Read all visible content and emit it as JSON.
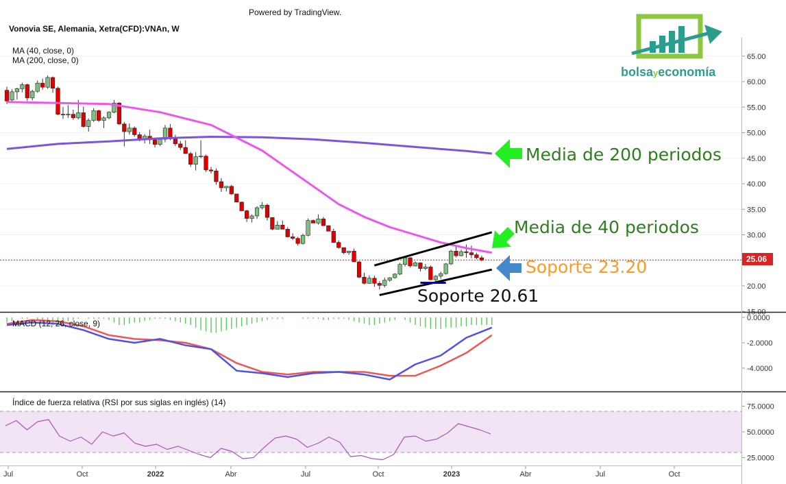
{
  "powered_by": "Powered by TradingView.",
  "title": "Vonovia SE, Alemania, Xetra(CFD):VNAn, W",
  "ma_labels": [
    "MA (40, close, 0)",
    "MA (200, close, 0)"
  ],
  "macd_label": "MACD (12, 26, close, 9)",
  "rsi_label": "Índice de fuerza relativa (RSI por sus siglas en inglés) (14)",
  "logo": {
    "part1": "bolsa",
    "part2": "y",
    "part3": "economía"
  },
  "annotations": {
    "ma200": "Media de 200 periodos",
    "ma40": "Media de 40 periodos",
    "support1": "Soporte 23.20",
    "support2": "Soporte 20.61"
  },
  "price_tag": "25.06",
  "colors": {
    "up": "#7fbf7f",
    "down": "#e00000",
    "ma40": "#ee55ee",
    "ma200": "#7b55dd",
    "macd": "#5050e8",
    "signal": "#ee5555",
    "hist": "#55cc55",
    "rsi": "#aa55bb",
    "arrow_green": "#22ee22",
    "arrow_blue": "#4488cc",
    "text_green": "#2e7d1e",
    "text_orange": "#ff9922",
    "price_tag": "#dd2222"
  },
  "chart_data": [
    {
      "type": "candlestick",
      "x": [
        "Jul",
        "Oct",
        "2022",
        "Abr",
        "Jul",
        "Oct",
        "2023",
        "Abr",
        "Jul",
        "Oct"
      ],
      "ylim": [
        15,
        67
      ],
      "yticks": [
        "65.00",
        "60.00",
        "55.00",
        "50.00",
        "45.00",
        "40.00",
        "35.00",
        "30.00",
        "25.00",
        "20.00",
        "15.00"
      ],
      "last_price": 25.06,
      "ohlc": [
        [
          58.3,
          59,
          55.6,
          56.2
        ],
        [
          56.4,
          58.5,
          56,
          58
        ],
        [
          58,
          58.8,
          56.5,
          58.6
        ],
        [
          58.6,
          59.8,
          57.9,
          59.4
        ],
        [
          59.4,
          59.6,
          56.2,
          56.8
        ],
        [
          56.8,
          58.4,
          56.3,
          58.1
        ],
        [
          58.1,
          60.2,
          57.8,
          59.7
        ],
        [
          59.7,
          60.6,
          58.4,
          58.9
        ],
        [
          58.9,
          61.2,
          58.6,
          60.8
        ],
        [
          60.8,
          61,
          57.8,
          58.7
        ],
        [
          58.7,
          59,
          53.4,
          53.6
        ],
        [
          53.6,
          55,
          52.7,
          53.5
        ],
        [
          53.5,
          55.4,
          52.9,
          53.6
        ],
        [
          53.6,
          54.5,
          52.5,
          52.9
        ],
        [
          52.9,
          56.4,
          52.6,
          53.9
        ],
        [
          53.9,
          55.1,
          51,
          51.2
        ],
        [
          51.2,
          52.8,
          50.2,
          52.4
        ],
        [
          52.4,
          54.8,
          52.1,
          54.3
        ],
        [
          54.3,
          54.5,
          52.1,
          52.4
        ],
        [
          52.4,
          53.2,
          50.9,
          52.9
        ],
        [
          52.9,
          54.2,
          52.6,
          54
        ],
        [
          54,
          56.4,
          53.8,
          55.8
        ],
        [
          55.8,
          56,
          51.5,
          51.7
        ],
        [
          51.7,
          52.1,
          47.3,
          50.2
        ],
        [
          50.2,
          51.8,
          49.6,
          50.9
        ],
        [
          50.9,
          51.2,
          49.2,
          49.6
        ],
        [
          49.6,
          50.1,
          48.3,
          48.6
        ],
        [
          48.6,
          49.7,
          47.9,
          49.3
        ],
        [
          49.3,
          50.6,
          47.8,
          48.6
        ],
        [
          48.6,
          49,
          47.1,
          47.7
        ],
        [
          47.7,
          49,
          47.4,
          48.7
        ],
        [
          48.7,
          51.5,
          48.1,
          50.9
        ],
        [
          50.9,
          51.7,
          48.5,
          48.8
        ],
        [
          48.8,
          49.6,
          47.4,
          47.8
        ],
        [
          47.8,
          48.4,
          46.6,
          47.1
        ],
        [
          47.1,
          48.5,
          46,
          45.9
        ],
        [
          45.9,
          46.2,
          43.3,
          43.8
        ],
        [
          43.8,
          46.2,
          42.6,
          45.3
        ],
        [
          45.3,
          48.5,
          45,
          45.4
        ],
        [
          45.4,
          45.7,
          42.3,
          42.7
        ],
        [
          42.7,
          43.3,
          42,
          42.5
        ],
        [
          42.5,
          43,
          39.8,
          40.4
        ],
        [
          40.4,
          41.1,
          38.4,
          39.2
        ],
        [
          39.2,
          39.4,
          38.5,
          39.5
        ],
        [
          39.5,
          39.8,
          37.8,
          38
        ],
        [
          38,
          37.5,
          36.4,
          36.4
        ],
        [
          36.4,
          36.5,
          34.7,
          34.7
        ],
        [
          34.7,
          34.9,
          32.5,
          33.2
        ],
        [
          33.2,
          34,
          32.4,
          33.7
        ],
        [
          33.7,
          35.6,
          33.1,
          35.3
        ],
        [
          35.3,
          36.4,
          35,
          35.8
        ],
        [
          35.8,
          36.1,
          32.8,
          33.4
        ],
        [
          33.4,
          33.4,
          30.9,
          31.1
        ],
        [
          31.1,
          32.7,
          31.1,
          31.9
        ],
        [
          31.9,
          32.8,
          31.2,
          31.1
        ],
        [
          31.1,
          31.5,
          29.5,
          29.6
        ],
        [
          29.6,
          30.3,
          29,
          29.3
        ],
        [
          29.3,
          29.6,
          27.9,
          28.3
        ],
        [
          28.3,
          30.2,
          28.1,
          29.9
        ],
        [
          29.9,
          33.2,
          29.7,
          32.8
        ],
        [
          32.8,
          33,
          32.3,
          32.3
        ],
        [
          32.3,
          34,
          32,
          33.1
        ],
        [
          33.1,
          33.5,
          31.7,
          31.8
        ],
        [
          31.8,
          31.5,
          30.8,
          30.7
        ],
        [
          30.7,
          31.2,
          28.4,
          28.5
        ],
        [
          28.5,
          28.9,
          27.3,
          27.5
        ],
        [
          27.5,
          27.5,
          26.2,
          26.5
        ],
        [
          26.5,
          26.9,
          26.1,
          26.8
        ],
        [
          26.8,
          27.3,
          24.8,
          24.7
        ],
        [
          24.7,
          24.9,
          21.5,
          21.7
        ],
        [
          21.7,
          22.6,
          20.3,
          20.5
        ],
        [
          20.5,
          22.1,
          20.4,
          21.5
        ],
        [
          21.5,
          22,
          19.8,
          20.5
        ],
        [
          20.5,
          20.9,
          19.3,
          20.1
        ],
        [
          20.1,
          21.6,
          19.7,
          21.1
        ],
        [
          21.1,
          21.7,
          20.8,
          21.6
        ],
        [
          21.6,
          22.5,
          21.4,
          22.3
        ],
        [
          22.3,
          24.5,
          22.1,
          24.2
        ],
        [
          24.2,
          25.8,
          23.8,
          25.5
        ],
        [
          25.5,
          25.6,
          23.6,
          23.9
        ],
        [
          23.9,
          24.8,
          23.8,
          24.5
        ],
        [
          24.5,
          24.6,
          22.8,
          23.4
        ],
        [
          23.4,
          24.3,
          23.1,
          23.7
        ],
        [
          23.7,
          24,
          21.1,
          21.2
        ],
        [
          21.2,
          22.1,
          20.9,
          21.9
        ],
        [
          21.9,
          22.8,
          21.4,
          22.4
        ],
        [
          22.4,
          24.5,
          22.2,
          24.3
        ],
        [
          24.3,
          27.1,
          24.1,
          26.8
        ],
        [
          26.8,
          27.7,
          25.6,
          25.9
        ],
        [
          25.9,
          27.1,
          25.8,
          26.7
        ],
        [
          26.7,
          28.1,
          25.5,
          26.5
        ],
        [
          26.5,
          27.9,
          25.4,
          26.1
        ],
        [
          26.1,
          26.5,
          25.2,
          25.5
        ],
        [
          25.5,
          25.9,
          24.8,
          25.06
        ]
      ],
      "ma40": [
        [
          0,
          56
        ],
        [
          10,
          55.8
        ],
        [
          20,
          55.6
        ],
        [
          30,
          54
        ],
        [
          40,
          51.5
        ],
        [
          45,
          49
        ],
        [
          50,
          46.5
        ],
        [
          55,
          43
        ],
        [
          60,
          39.5
        ],
        [
          65,
          36
        ],
        [
          70,
          33.5
        ],
        [
          75,
          31.5
        ],
        [
          80,
          30
        ],
        [
          85,
          28.5
        ],
        [
          90,
          27.4
        ],
        [
          95,
          26.5
        ]
      ],
      "ma200": [
        [
          0,
          46.8
        ],
        [
          10,
          47.8
        ],
        [
          20,
          48.3
        ],
        [
          30,
          48.9
        ],
        [
          40,
          49.2
        ],
        [
          50,
          49.1
        ],
        [
          60,
          48.7
        ],
        [
          70,
          48
        ],
        [
          80,
          47.2
        ],
        [
          90,
          46.4
        ],
        [
          95,
          45.9
        ]
      ],
      "trendlines": [
        {
          "from": [
            72,
            24
          ],
          "to": [
            95,
            30.5
          ],
          "color": "#000000"
        },
        {
          "from": [
            73,
            18.2
          ],
          "to": [
            95,
            23.2
          ],
          "color": "#000000"
        },
        {
          "from": [
            81,
            20.61
          ],
          "to": [
            86,
            20.61
          ],
          "color": "#0000cc"
        }
      ]
    },
    {
      "type": "line",
      "name": "MACD",
      "ylim": [
        -5.6,
        0.3
      ],
      "yticks": [
        "0.0000",
        "-2.0000",
        "-4.0000"
      ],
      "macd": [
        [
          0,
          -0.6
        ],
        [
          5,
          -0.4
        ],
        [
          10,
          -0.5
        ],
        [
          15,
          -1
        ],
        [
          20,
          -1.7
        ],
        [
          25,
          -2
        ],
        [
          30,
          -1.7
        ],
        [
          35,
          -2.2
        ],
        [
          40,
          -2.5
        ],
        [
          45,
          -4.2
        ],
        [
          50,
          -4.4
        ],
        [
          55,
          -4.7
        ],
        [
          60,
          -4.4
        ],
        [
          65,
          -4.3
        ],
        [
          70,
          -4.5
        ],
        [
          75,
          -4.9
        ],
        [
          80,
          -3.7
        ],
        [
          85,
          -3
        ],
        [
          90,
          -1.6
        ],
        [
          95,
          -0.8
        ]
      ],
      "signal": [
        [
          0,
          -0.5
        ],
        [
          5,
          -0.2
        ],
        [
          10,
          -0.3
        ],
        [
          15,
          -0.7
        ],
        [
          20,
          -1.4
        ],
        [
          25,
          -1.7
        ],
        [
          30,
          -1.8
        ],
        [
          35,
          -2
        ],
        [
          40,
          -2.5
        ],
        [
          45,
          -3.6
        ],
        [
          50,
          -4.3
        ],
        [
          55,
          -4.5
        ],
        [
          60,
          -4.3
        ],
        [
          65,
          -4.3
        ],
        [
          70,
          -4.3
        ],
        [
          75,
          -4.6
        ],
        [
          80,
          -4.6
        ],
        [
          85,
          -3.8
        ],
        [
          90,
          -2.8
        ],
        [
          95,
          -1.4
        ]
      ],
      "histogram": [
        -0.4,
        -0.3,
        0,
        0.1,
        0.1,
        0,
        -0.2,
        -0.3,
        -0.5,
        -0.6,
        -0.6,
        -0.5,
        -0.3,
        -0.2,
        -0.1,
        0,
        0.1,
        0.1,
        0.1,
        -0.1,
        -0.2,
        -0.4,
        -0.6,
        -0.6,
        -0.5,
        -0.4,
        -0.4,
        -0.3,
        -0.2,
        -0.1,
        -0.1,
        -0.1,
        -0.2,
        -0.3,
        -0.4,
        -0.5,
        -0.6,
        -0.8,
        -1,
        -1.1,
        -1.2,
        -1.2,
        -1.1,
        -1,
        -0.9,
        -0.8,
        -0.7,
        -0.6,
        -0.5,
        -0.4,
        -0.3,
        -0.2,
        -0.1,
        -0.1,
        -0.1,
        0,
        0,
        0,
        0.1,
        0.1,
        0.1,
        0.1,
        0.2,
        0.2,
        0.1,
        0.1,
        -0.1,
        -0.2,
        -0.3,
        -0.4,
        -0.5,
        -0.6,
        -0.6,
        -0.5,
        -0.4,
        -0.3,
        -0.2,
        0,
        0.2,
        0.4,
        0.6,
        0.7,
        0.8,
        0.9,
        0.9,
        0.9,
        0.8,
        0.8,
        0.8,
        0.7,
        0.7,
        0.6,
        0.6,
        0.6,
        0.6,
        0.6
      ]
    },
    {
      "type": "line",
      "name": "RSI",
      "ylim": [
        20,
        80
      ],
      "yticks": [
        "75.0000",
        "50.0000",
        "25.0000"
      ],
      "band": [
        30,
        70
      ],
      "values": [
        [
          0,
          56
        ],
        [
          3,
          61
        ],
        [
          6,
          52
        ],
        [
          9,
          60
        ],
        [
          12,
          62
        ],
        [
          15,
          46
        ],
        [
          18,
          41
        ],
        [
          21,
          45
        ],
        [
          24,
          38
        ],
        [
          27,
          50
        ],
        [
          30,
          46
        ],
        [
          33,
          49
        ],
        [
          36,
          39
        ],
        [
          39,
          36
        ],
        [
          42,
          38
        ],
        [
          45,
          33
        ],
        [
          48,
          36
        ],
        [
          51,
          32
        ],
        [
          54,
          28
        ],
        [
          57,
          25
        ],
        [
          60,
          34
        ],
        [
          63,
          31
        ],
        [
          66,
          24
        ],
        [
          69,
          25
        ],
        [
          72,
          35
        ],
        [
          75,
          44
        ],
        [
          78,
          46
        ],
        [
          81,
          43
        ],
        [
          84,
          35
        ],
        [
          87,
          39
        ],
        [
          90,
          45
        ],
        [
          93,
          40
        ],
        [
          96,
          26
        ],
        [
          99,
          27
        ],
        [
          102,
          24
        ],
        [
          105,
          23
        ],
        [
          108,
          28
        ],
        [
          111,
          45
        ],
        [
          114,
          46
        ],
        [
          117,
          41
        ],
        [
          120,
          43
        ],
        [
          123,
          49
        ],
        [
          126,
          58
        ],
        [
          129,
          55
        ],
        [
          132,
          52
        ],
        [
          135,
          48
        ]
      ],
      "xlim": [
        0,
        135
      ]
    }
  ]
}
